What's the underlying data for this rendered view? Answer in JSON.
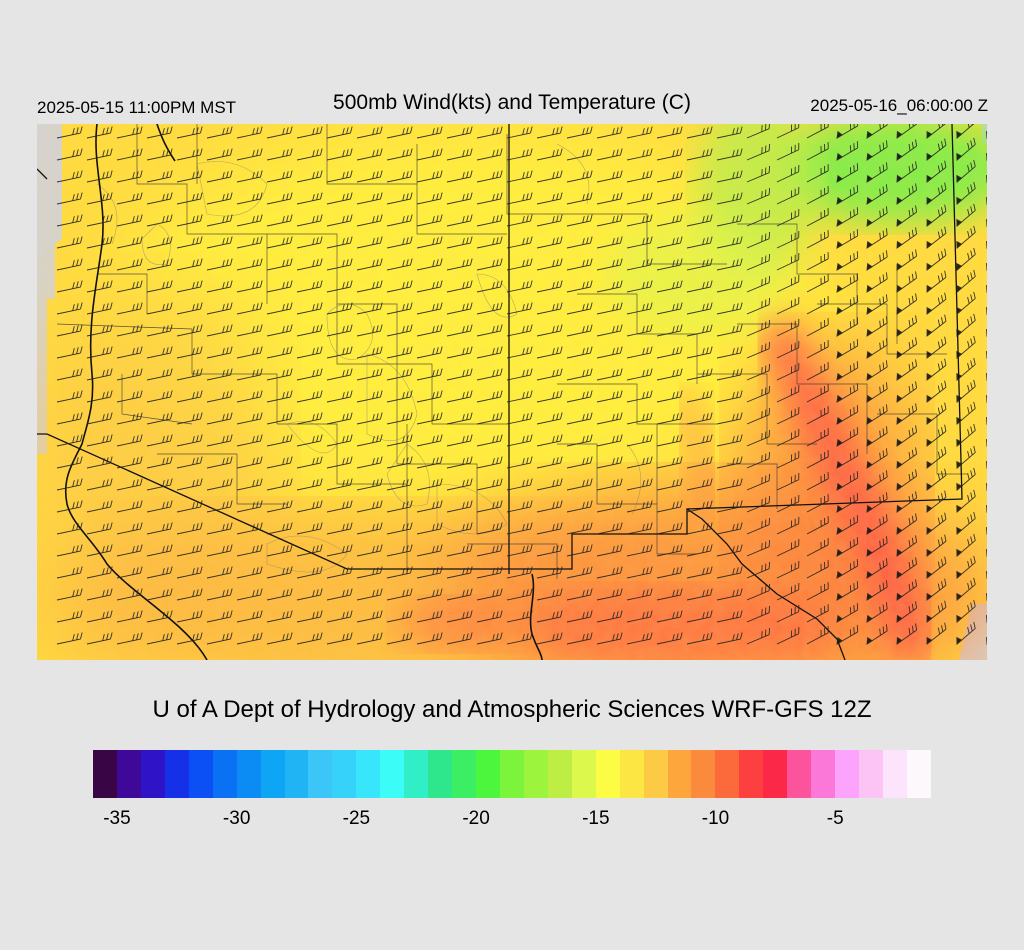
{
  "header": {
    "local_time": "2025-05-15 11:00PM MST",
    "title": "500mb Wind(kts) and Temperature (C)",
    "valid_time": "2025-05-16_06:00:00 Z"
  },
  "footer": {
    "credit": "U of A Dept of Hydrology and Atmospheric Sciences WRF-GFS 12Z"
  },
  "colors": {
    "background": "#e5e5e5",
    "outside_domain": "#d3d3d3",
    "warm_core": "#ff5a5a",
    "base_field": "#ffdc3c",
    "cool_region": "#66f046"
  },
  "colorbar": {
    "min": -36,
    "max": -1,
    "step": 1,
    "tick_labels": [
      "-35",
      "-30",
      "-25",
      "-20",
      "-15",
      "-10",
      "-5"
    ],
    "colors": [
      "#3a0545",
      "#3e0898",
      "#2e14c6",
      "#1630e8",
      "#0a50f4",
      "#0a70f4",
      "#0a8cf4",
      "#0ea6f4",
      "#20b4f4",
      "#3cc6f8",
      "#36d2fa",
      "#38e6fc",
      "#3cfcf8",
      "#30eec6",
      "#2ee68c",
      "#3cee64",
      "#4cf63c",
      "#7cf43c",
      "#9cf43c",
      "#beee44",
      "#dcf84c",
      "#fcfc44",
      "#fce644",
      "#fcca44",
      "#fca63c",
      "#fc8a3c",
      "#fc6a3c",
      "#fc4040",
      "#fc2848",
      "#fc549c",
      "#fc78d8",
      "#fca4fc",
      "#fcc4f4",
      "#fce4fc",
      "#fcf8fc"
    ]
  },
  "map": {
    "field": "500mb temperature with wind barbs",
    "units": {
      "wind": "kts",
      "temperature": "C"
    }
  }
}
